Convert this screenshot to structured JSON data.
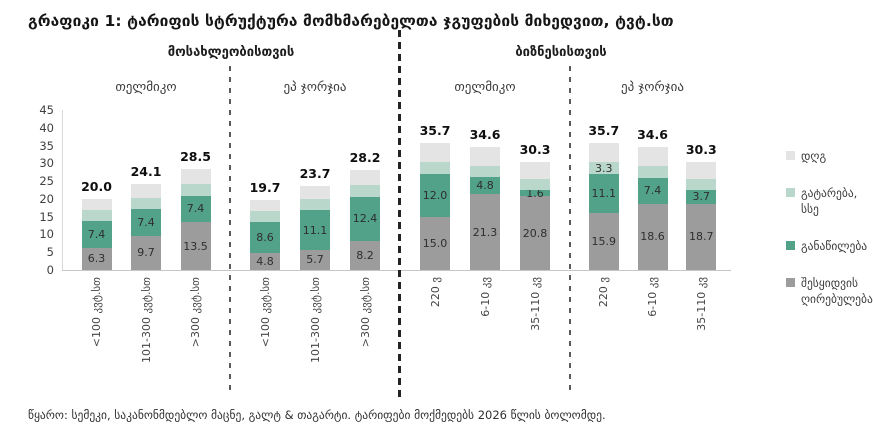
{
  "chart_data": {
    "type": "bar",
    "subtype": "stacked-grouped",
    "title": "გრაფიკი 1: ტარიფის სტრუქტურა მომხმარებელთა ჯგუფების მიხედვით, ტვტ.სთ",
    "source": "წყარო: სემეკი, საკანონმდებლო მაცნე, გალტ & თაგარტი. ტარიფები მოქმედებს 2026 წლის ბოლომდე.",
    "y_axis": {
      "min": 0,
      "max": 45,
      "step": 5,
      "ticks": [
        45,
        40,
        35,
        30,
        25,
        20,
        15,
        10,
        5,
        0
      ],
      "grid": false
    },
    "legend_position": "right",
    "segments": [
      {
        "name": "შესყიდვის ღირებულება",
        "color": "#9c9c9c"
      },
      {
        "name": "განაწილება",
        "color": "#52a189"
      },
      {
        "name": "გატარება, სსე",
        "color": "#b9d8cb"
      },
      {
        "name": "დღგ",
        "color": "#e4e4e4"
      }
    ],
    "sections": [
      {
        "label": "მოსახლეობისთვის"
      },
      {
        "label": "ბიზნესისთვის"
      }
    ],
    "groups": [
      {
        "section": "მოსახლეობისთვის",
        "label": "თელმიკო",
        "bars": [
          {
            "category": "<100 კვტ.სთ",
            "total": "20.0",
            "values": [
              6.3,
              7.4,
              3.3,
              3.0
            ],
            "labels": [
              "6.3",
              "7.4",
              "",
              ""
            ]
          },
          {
            "category": "101-300 კვტ.სთ",
            "total": "24.1",
            "values": [
              9.7,
              7.4,
              3.3,
              3.7
            ],
            "labels": [
              "9.7",
              "7.4",
              "",
              ""
            ]
          },
          {
            "category": ">300 კვტ.სთ",
            "total": "28.5",
            "values": [
              13.5,
              7.4,
              3.3,
              4.3
            ],
            "labels": [
              "13.5",
              "7.4",
              "",
              ""
            ]
          }
        ]
      },
      {
        "section": "მოსახლეობისთვის",
        "label": "ეპ ჯორჯია",
        "bars": [
          {
            "category": "<100 კვტ.სთ",
            "total": "19.7",
            "values": [
              4.8,
              8.6,
              3.3,
              3.0
            ],
            "labels": [
              "4.8",
              "8.6",
              "",
              ""
            ]
          },
          {
            "category": "101-300 კვტ.სთ",
            "total": "23.7",
            "values": [
              5.7,
              11.1,
              3.3,
              3.6
            ],
            "labels": [
              "5.7",
              "11.1",
              "",
              ""
            ]
          },
          {
            "category": ">300 კვტ.სთ",
            "total": "28.2",
            "values": [
              8.2,
              12.4,
              3.3,
              4.3
            ],
            "labels": [
              "8.2",
              "12.4",
              "",
              ""
            ]
          }
        ]
      },
      {
        "section": "ბიზნესისთვის",
        "label": "თელმიკო",
        "bars": [
          {
            "category": "220 ვ",
            "total": "35.7",
            "values": [
              15.0,
              12.0,
              3.3,
              5.4
            ],
            "labels": [
              "15.0",
              "12.0",
              "",
              ""
            ]
          },
          {
            "category": "6-10 კვ",
            "total": "34.6",
            "values": [
              21.3,
              4.8,
              3.3,
              5.2
            ],
            "labels": [
              "21.3",
              "4.8",
              "",
              ""
            ]
          },
          {
            "category": "35-110 კვ",
            "total": "30.3",
            "values": [
              20.8,
              1.6,
              3.3,
              4.6
            ],
            "labels": [
              "20.8",
              "1.6",
              "",
              ""
            ]
          }
        ]
      },
      {
        "section": "ბიზნესისთვის",
        "label": "ეპ ჯორჯია",
        "bars": [
          {
            "category": "220 ვ",
            "total": "35.7",
            "values": [
              15.9,
              11.1,
              3.3,
              5.4
            ],
            "labels": [
              "15.9",
              "11.1",
              "3.3",
              ""
            ]
          },
          {
            "category": "6-10 კვ",
            "total": "34.6",
            "values": [
              18.6,
              7.4,
              3.3,
              5.3
            ],
            "labels": [
              "18.6",
              "7.4",
              "",
              ""
            ]
          },
          {
            "category": "35-110 კვ",
            "total": "30.3",
            "values": [
              18.7,
              3.7,
              3.3,
              4.6
            ],
            "labels": [
              "18.7",
              "3.7",
              "",
              ""
            ]
          }
        ]
      }
    ]
  }
}
